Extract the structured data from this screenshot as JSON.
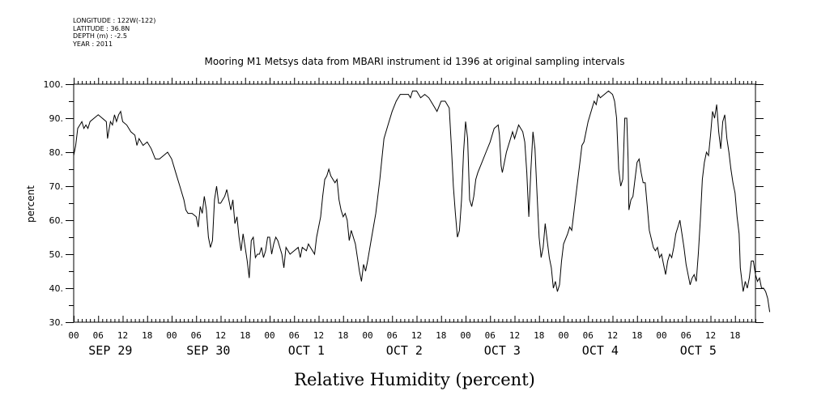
{
  "meta": {
    "longitude": "LONGITUDE : 122W(-122)",
    "latitude": "LATITUDE : 36.8N",
    "depth": "DEPTH (m) : -2.5",
    "year": "YEAR : 2011"
  },
  "chart_data": {
    "type": "line",
    "title": "Mooring M1 Metsys data from MBARI instrument id 1396 at original sampling intervals",
    "xlabel": "Relative Humidity (percent)",
    "ylabel": "percent",
    "ylim": [
      30,
      100
    ],
    "yticks": [
      30,
      40,
      50,
      60,
      70,
      80,
      90,
      100
    ],
    "ytick_labels": [
      "30.",
      "40.",
      "50.",
      "60.",
      "70.",
      "80.",
      "90.",
      "100."
    ],
    "xlim_hours": [
      0,
      168
    ],
    "hour_tick_labels": [
      "00",
      "06",
      "12",
      "18",
      "00",
      "06",
      "12",
      "18",
      "00",
      "06",
      "12",
      "18",
      "00",
      "06",
      "12",
      "18",
      "00",
      "06",
      "12",
      "18",
      "00",
      "06",
      "12",
      "18",
      "00",
      "06",
      "12",
      "18"
    ],
    "day_labels": [
      "SEP 29",
      "SEP 30",
      "OCT  1",
      "OCT  2",
      "OCT  3",
      "OCT  4",
      "OCT  5"
    ],
    "grid": false,
    "series": [
      {
        "points": [
          [
            0,
            79
          ],
          [
            0.5,
            82
          ],
          [
            1,
            87
          ],
          [
            1.5,
            88
          ],
          [
            2,
            89
          ],
          [
            2.5,
            87
          ],
          [
            3,
            88
          ],
          [
            3.5,
            87
          ],
          [
            4,
            89
          ],
          [
            5,
            90
          ],
          [
            6,
            91
          ],
          [
            7,
            90
          ],
          [
            8,
            89
          ],
          [
            8.3,
            84
          ],
          [
            8.7,
            87
          ],
          [
            9,
            89
          ],
          [
            9.5,
            88
          ],
          [
            10,
            91
          ],
          [
            10.5,
            89
          ],
          [
            11,
            91
          ],
          [
            11.5,
            92
          ],
          [
            12,
            89
          ],
          [
            13,
            88
          ],
          [
            14,
            86
          ],
          [
            15,
            85
          ],
          [
            15.5,
            82
          ],
          [
            16,
            84
          ],
          [
            17,
            82
          ],
          [
            18,
            83
          ],
          [
            19,
            81
          ],
          [
            20,
            78
          ],
          [
            21,
            78
          ],
          [
            22,
            79
          ],
          [
            23,
            80
          ],
          [
            24,
            78
          ],
          [
            25,
            74
          ],
          [
            26,
            70
          ],
          [
            26.5,
            68
          ],
          [
            27,
            66
          ],
          [
            27.5,
            63
          ],
          [
            28,
            62
          ],
          [
            29,
            62
          ],
          [
            30,
            61
          ],
          [
            30.5,
            58
          ],
          [
            31,
            64
          ],
          [
            31.5,
            62
          ],
          [
            32,
            67
          ],
          [
            32.5,
            63
          ],
          [
            33,
            55
          ],
          [
            33.5,
            52
          ],
          [
            34,
            54
          ],
          [
            34.5,
            66
          ],
          [
            35,
            70
          ],
          [
            35.5,
            65
          ],
          [
            36,
            65
          ],
          [
            36.5,
            66
          ],
          [
            37,
            67
          ],
          [
            37.5,
            69
          ],
          [
            38,
            66
          ],
          [
            38.5,
            63
          ],
          [
            39,
            66
          ],
          [
            39.5,
            59
          ],
          [
            40,
            61
          ],
          [
            40.5,
            55
          ],
          [
            41,
            51
          ],
          [
            41.5,
            56
          ],
          [
            42,
            52
          ],
          [
            42.5,
            48
          ],
          [
            43,
            43
          ],
          [
            43.5,
            54
          ],
          [
            44,
            55
          ],
          [
            44.5,
            49
          ],
          [
            45,
            50
          ],
          [
            45.5,
            50
          ],
          [
            46,
            52
          ],
          [
            46.5,
            49
          ],
          [
            47,
            51
          ],
          [
            47.5,
            55
          ],
          [
            48,
            55
          ],
          [
            48.5,
            50
          ],
          [
            49,
            53
          ],
          [
            49.5,
            55
          ],
          [
            50,
            54
          ],
          [
            51,
            50
          ],
          [
            51.5,
            46
          ],
          [
            52,
            52
          ],
          [
            53,
            50
          ],
          [
            54,
            51
          ],
          [
            55,
            52
          ],
          [
            55.5,
            49
          ],
          [
            56,
            52
          ],
          [
            57,
            51
          ],
          [
            57.5,
            53
          ],
          [
            58,
            52
          ],
          [
            59,
            50
          ],
          [
            59.5,
            55
          ],
          [
            60,
            58
          ],
          [
            60.5,
            61
          ],
          [
            61,
            67
          ],
          [
            61.5,
            72
          ],
          [
            62,
            73
          ],
          [
            62.5,
            75
          ],
          [
            63,
            73
          ],
          [
            64,
            71
          ],
          [
            64.5,
            72
          ],
          [
            65,
            66
          ],
          [
            65.5,
            63
          ],
          [
            66,
            61
          ],
          [
            66.5,
            62
          ],
          [
            67,
            60
          ],
          [
            67.5,
            54
          ],
          [
            68,
            57
          ],
          [
            69,
            53
          ],
          [
            69.5,
            49
          ],
          [
            70,
            45
          ],
          [
            70.5,
            42
          ],
          [
            71,
            47
          ],
          [
            71.5,
            45
          ],
          [
            72,
            48
          ],
          [
            73,
            55
          ],
          [
            74,
            62
          ],
          [
            75,
            72
          ],
          [
            75.5,
            78
          ],
          [
            76,
            84
          ],
          [
            77,
            88
          ],
          [
            78,
            92
          ],
          [
            79,
            95
          ],
          [
            80,
            97
          ],
          [
            81,
            97
          ],
          [
            82,
            97
          ],
          [
            82.5,
            96
          ],
          [
            83,
            98
          ],
          [
            84,
            98
          ],
          [
            85,
            96
          ],
          [
            86,
            97
          ],
          [
            87,
            96
          ],
          [
            88,
            94
          ],
          [
            89,
            92
          ],
          [
            90,
            95
          ],
          [
            91,
            95
          ],
          [
            92,
            93
          ],
          [
            92.5,
            82
          ],
          [
            93,
            70
          ],
          [
            93.5,
            62
          ],
          [
            94,
            55
          ],
          [
            94.5,
            57
          ],
          [
            95,
            66
          ],
          [
            95.5,
            80
          ],
          [
            96,
            89
          ],
          [
            96.5,
            84
          ],
          [
            97,
            66
          ],
          [
            97.5,
            64
          ],
          [
            98,
            67
          ],
          [
            98.5,
            72
          ],
          [
            99,
            74
          ],
          [
            100,
            77
          ],
          [
            101,
            80
          ],
          [
            102,
            83
          ],
          [
            103,
            87
          ],
          [
            104,
            88
          ],
          [
            104.3,
            85
          ],
          [
            104.7,
            76
          ],
          [
            105,
            74
          ],
          [
            106,
            80
          ],
          [
            107,
            84
          ],
          [
            107.5,
            86
          ],
          [
            108,
            84
          ],
          [
            109,
            88
          ],
          [
            110,
            86
          ],
          [
            110.5,
            83
          ],
          [
            111,
            74
          ],
          [
            111.5,
            61
          ],
          [
            112,
            75
          ],
          [
            112.5,
            86
          ],
          [
            113,
            81
          ],
          [
            113.5,
            68
          ],
          [
            114,
            55
          ],
          [
            114.5,
            49
          ],
          [
            115,
            52
          ],
          [
            115.5,
            59
          ],
          [
            116,
            54
          ],
          [
            116.5,
            49
          ],
          [
            117,
            46
          ],
          [
            117.5,
            40
          ],
          [
            118,
            42
          ],
          [
            118.5,
            39
          ],
          [
            119,
            41
          ],
          [
            119.5,
            48
          ],
          [
            120,
            53
          ],
          [
            121,
            56
          ],
          [
            121.5,
            58
          ],
          [
            122,
            57
          ],
          [
            123,
            67
          ],
          [
            124,
            77
          ],
          [
            124.5,
            82
          ],
          [
            125,
            83
          ],
          [
            126,
            89
          ],
          [
            127,
            93
          ],
          [
            127.5,
            95
          ],
          [
            128,
            94
          ],
          [
            128.5,
            97
          ],
          [
            129,
            96
          ],
          [
            130,
            97
          ],
          [
            131,
            98
          ],
          [
            132,
            97
          ],
          [
            132.5,
            95
          ],
          [
            133,
            90
          ],
          [
            133.5,
            75
          ],
          [
            134,
            70
          ],
          [
            134.5,
            72
          ],
          [
            135,
            90
          ],
          [
            135.5,
            90
          ],
          [
            135.8,
            78
          ],
          [
            136,
            63
          ],
          [
            136.5,
            66
          ],
          [
            137,
            67
          ],
          [
            137.5,
            72
          ],
          [
            138,
            77
          ],
          [
            138.5,
            78
          ],
          [
            139,
            74
          ],
          [
            139.5,
            71
          ],
          [
            140,
            71
          ],
          [
            140.5,
            64
          ],
          [
            141,
            57
          ],
          [
            142,
            52
          ],
          [
            142.5,
            51
          ],
          [
            143,
            52
          ],
          [
            143.5,
            49
          ],
          [
            144,
            50
          ],
          [
            144.5,
            47
          ],
          [
            145,
            44
          ],
          [
            145.5,
            48
          ],
          [
            146,
            50
          ],
          [
            146.5,
            49
          ],
          [
            147,
            52
          ],
          [
            147.5,
            56
          ],
          [
            148,
            58
          ],
          [
            148.5,
            60
          ],
          [
            149,
            56
          ],
          [
            149.5,
            52
          ],
          [
            150,
            47
          ],
          [
            150.5,
            44
          ],
          [
            151,
            41
          ],
          [
            151.5,
            43
          ],
          [
            152,
            44
          ],
          [
            152.5,
            42
          ],
          [
            153,
            50
          ],
          [
            153.5,
            60
          ],
          [
            154,
            72
          ],
          [
            154.5,
            77
          ],
          [
            155,
            80
          ],
          [
            155.5,
            79
          ],
          [
            156,
            85
          ],
          [
            156.5,
            92
          ],
          [
            157,
            90
          ],
          [
            157.5,
            94
          ],
          [
            158,
            86
          ],
          [
            158.5,
            81
          ],
          [
            159,
            89
          ],
          [
            159.5,
            91
          ],
          [
            160,
            84
          ],
          [
            160.5,
            80
          ],
          [
            161,
            75
          ],
          [
            161.5,
            71
          ],
          [
            162,
            68
          ],
          [
            162.5,
            61
          ],
          [
            163,
            56
          ],
          [
            163.3,
            46
          ],
          [
            163.7,
            42
          ],
          [
            164,
            39
          ],
          [
            164.5,
            42
          ],
          [
            165,
            40
          ],
          [
            165.5,
            43
          ],
          [
            166,
            48
          ],
          [
            166.5,
            48
          ],
          [
            167,
            44
          ],
          [
            167.5,
            42
          ],
          [
            168,
            43
          ],
          [
            168.5,
            40
          ],
          [
            169,
            40
          ],
          [
            169.5,
            39
          ],
          [
            170,
            37
          ],
          [
            170.5,
            33
          ]
        ]
      }
    ]
  }
}
